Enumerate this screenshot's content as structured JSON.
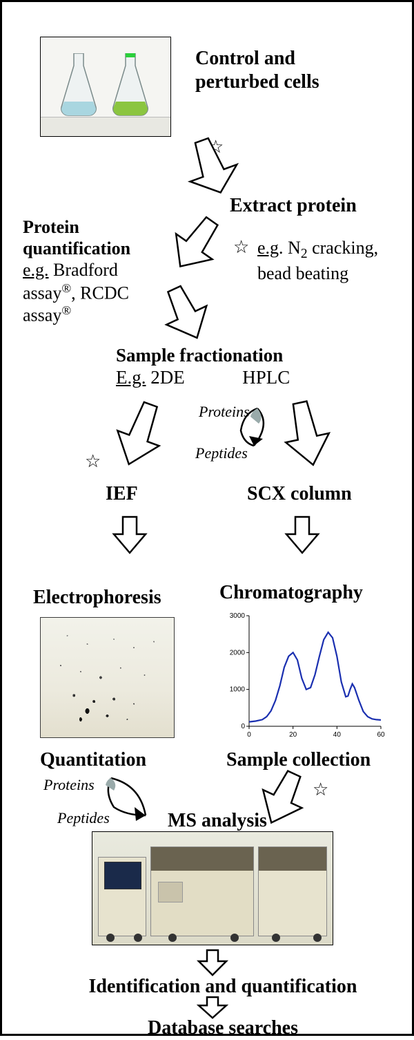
{
  "title": "Control and perturbed cells",
  "steps": {
    "extract": "Extract protein",
    "quant_head": "Protein quantification",
    "quant_eg_prefix": "e.g.",
    "quant_eg_rest": " Bradford assay",
    "quant_eg_rest2": ", RCDC assay",
    "extract_eg_prefix": "e.g",
    "extract_eg_rest": ". N",
    "extract_eg_rest2": " cracking, bead beating",
    "fraction_head": "Sample fractionation",
    "fraction_eg_prefix": "E.g.",
    "fraction_eg_2de": " 2DE",
    "fraction_hplc": "HPLC",
    "proteins": "Proteins",
    "peptides": "Peptides",
    "ief": "IEF",
    "scx": "SCX column",
    "electrophoresis": "Electrophoresis",
    "chromatography": "Chromatography",
    "quantitation": "Quantitation",
    "sample_collection": "Sample collection",
    "ms": "MS analysis",
    "ident": "Identification and quantification",
    "db": "Database searches"
  },
  "chromatogram": {
    "line_color": "#1a2fb0",
    "axis_color": "#000000",
    "xlim": [
      0,
      60
    ],
    "ylim": [
      0,
      3000
    ],
    "xticks": [
      0,
      20,
      40,
      60
    ],
    "yticks": [
      0,
      1000,
      2000,
      3000
    ],
    "tick_fontsize": 10,
    "points": [
      [
        0,
        120
      ],
      [
        3,
        140
      ],
      [
        6,
        180
      ],
      [
        8,
        260
      ],
      [
        10,
        420
      ],
      [
        12,
        700
      ],
      [
        14,
        1100
      ],
      [
        16,
        1600
      ],
      [
        18,
        1900
      ],
      [
        20,
        2000
      ],
      [
        22,
        1800
      ],
      [
        24,
        1300
      ],
      [
        26,
        1000
      ],
      [
        28,
        1050
      ],
      [
        30,
        1400
      ],
      [
        32,
        1900
      ],
      [
        34,
        2350
      ],
      [
        36,
        2550
      ],
      [
        38,
        2400
      ],
      [
        40,
        1900
      ],
      [
        42,
        1200
      ],
      [
        44,
        800
      ],
      [
        45,
        820
      ],
      [
        46,
        1000
      ],
      [
        47,
        1150
      ],
      [
        48,
        1050
      ],
      [
        50,
        700
      ],
      [
        52,
        400
      ],
      [
        54,
        260
      ],
      [
        56,
        200
      ],
      [
        58,
        180
      ],
      [
        60,
        170
      ]
    ]
  },
  "flasks": {
    "left_liquid": "#a9d6e0",
    "right_liquid": "#8bc540",
    "right_neck": "#2bcf3b",
    "glass": "#dfe6e6"
  },
  "ms_colors": {
    "body": "#e7e3ce",
    "panel_dark": "#6a6350",
    "screen": "#1a2a4a"
  },
  "symbols": {
    "star": "☆",
    "reg": "®"
  }
}
